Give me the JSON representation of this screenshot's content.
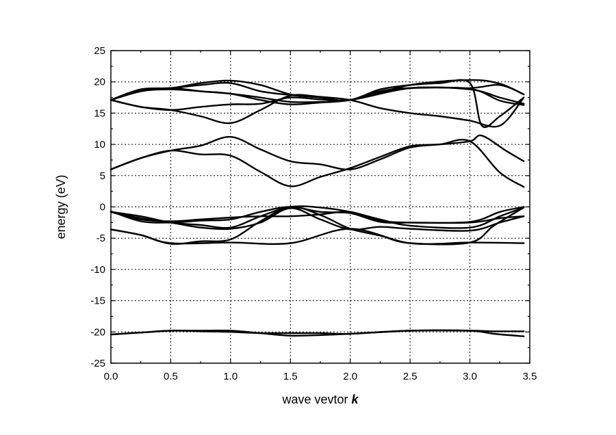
{
  "chart_data": {
    "type": "line",
    "title": "",
    "xlabel": "wave vevtor",
    "xlabel_var": "k",
    "ylabel": "energy (eV)",
    "xlim": [
      0.0,
      3.5
    ],
    "ylim": [
      -25,
      25
    ],
    "x_ticks": [
      "0.0",
      "0.5",
      "1.0",
      "1.5",
      "2.0",
      "2.5",
      "3.0",
      "3.5"
    ],
    "y_ticks": [
      "25",
      "20",
      "15",
      "10",
      "5",
      "0",
      "-5",
      "-10",
      "-15",
      "-20",
      "-25"
    ],
    "grid": true,
    "legend": "none",
    "line_color": "#000000",
    "series": [
      {
        "x": [
          0.0,
          0.25,
          0.5,
          0.75,
          1.0,
          1.25,
          1.5,
          1.75,
          2.0,
          2.5,
          3.0,
          3.2,
          3.45
        ],
        "values": [
          -20.4,
          -20.1,
          -19.8,
          -19.8,
          -19.8,
          -20.2,
          -20.6,
          -20.5,
          -20.3,
          -19.8,
          -19.8,
          -20.3,
          -20.7
        ]
      },
      {
        "x": [
          0.0,
          0.25,
          0.5,
          0.75,
          1.0,
          1.25,
          1.5,
          1.75,
          2.0,
          2.5,
          3.0,
          3.2,
          3.45
        ],
        "values": [
          -20.4,
          -20.1,
          -19.8,
          -19.9,
          -20.0,
          -20.2,
          -20.2,
          -20.2,
          -20.3,
          -19.8,
          -19.8,
          -19.9,
          -19.9
        ]
      },
      {
        "x": [
          0.0,
          0.25,
          0.5,
          1.0,
          1.5,
          2.0,
          2.5,
          3.0,
          3.45
        ],
        "values": [
          -3.6,
          -4.5,
          -5.8,
          -5.7,
          -5.8,
          -3.5,
          -5.8,
          -5.7,
          -5.8
        ]
      },
      {
        "x": [
          0.0,
          0.25,
          0.5,
          0.75,
          1.0,
          1.25,
          1.5,
          1.75,
          2.0,
          2.25,
          2.5,
          3.0,
          3.2,
          3.45
        ],
        "values": [
          -3.6,
          -4.5,
          -5.9,
          -5.5,
          -5.2,
          -2.3,
          0.0,
          -1.3,
          -3.5,
          -4.6,
          -5.8,
          -5.7,
          -3.0,
          -0.1
        ]
      },
      {
        "x": [
          0.0,
          0.25,
          0.5,
          0.75,
          1.0,
          1.25,
          1.5,
          1.75,
          2.0,
          2.25,
          2.5,
          3.0,
          3.25,
          3.45
        ],
        "values": [
          -0.8,
          -1.5,
          -2.5,
          -2.9,
          -3.3,
          -1.5,
          0.0,
          -0.1,
          -0.8,
          -2.0,
          -3.0,
          -3.3,
          -1.5,
          -0.1
        ]
      },
      {
        "x": [
          0.0,
          0.25,
          0.5,
          0.75,
          1.0,
          1.25,
          1.5,
          1.75,
          2.0,
          2.25,
          2.5,
          3.0,
          3.25,
          3.45
        ],
        "values": [
          -0.8,
          -1.8,
          -2.5,
          -3.3,
          -3.5,
          -2.5,
          -0.2,
          -2.0,
          -3.6,
          -3.2,
          -3.5,
          -3.8,
          -2.5,
          -1.5
        ]
      },
      {
        "x": [
          0.0,
          0.25,
          0.5,
          0.75,
          1.0,
          1.25,
          1.5,
          1.75,
          2.0,
          2.25,
          2.5,
          3.0,
          3.25,
          3.45
        ],
        "values": [
          -0.8,
          -2.0,
          -2.3,
          -2.0,
          -1.7,
          -1.5,
          -1.5,
          -1.2,
          -0.8,
          -2.2,
          -2.5,
          -2.5,
          -1.8,
          -1.5
        ]
      },
      {
        "x": [
          0.0,
          0.25,
          0.5,
          0.75,
          1.0,
          1.25,
          1.5,
          1.75,
          2.0,
          2.25,
          2.5,
          3.0,
          3.25,
          3.45
        ],
        "values": [
          -0.7,
          -2.3,
          -2.5,
          -2.2,
          -2.0,
          -0.8,
          0.0,
          -0.8,
          -1.0,
          -2.4,
          -2.5,
          -2.4,
          -0.8,
          0.0
        ]
      },
      {
        "x": [
          0.0,
          0.25,
          0.5,
          0.75,
          1.0,
          1.25,
          1.5,
          1.75,
          2.0,
          2.25,
          2.5,
          2.75,
          3.0,
          3.25,
          3.45
        ],
        "values": [
          6.0,
          7.8,
          9.0,
          9.8,
          11.2,
          9.2,
          7.3,
          6.8,
          6.0,
          7.6,
          9.5,
          10.0,
          10.5,
          5.5,
          3.2
        ]
      },
      {
        "x": [
          0.0,
          0.25,
          0.5,
          0.75,
          1.0,
          1.25,
          1.5,
          1.75,
          2.0,
          2.25,
          2.5,
          2.75,
          3.0,
          3.1,
          3.3,
          3.45
        ],
        "values": [
          6.0,
          7.8,
          9.0,
          8.4,
          8.2,
          5.6,
          3.3,
          4.8,
          6.2,
          8.0,
          9.7,
          10.0,
          10.5,
          11.4,
          9.0,
          7.3
        ]
      },
      {
        "x": [
          0.0,
          0.25,
          0.5,
          0.75,
          1.0,
          1.25,
          1.5,
          1.75,
          2.0,
          2.25,
          2.5,
          2.75,
          3.0,
          3.25,
          3.45
        ],
        "values": [
          17.1,
          16.0,
          15.5,
          14.5,
          13.4,
          15.5,
          17.8,
          17.6,
          17.1,
          15.8,
          15.0,
          14.5,
          13.8,
          13.0,
          17.5
        ]
      },
      {
        "x": [
          0.0,
          0.25,
          0.5,
          0.75,
          1.0,
          1.25,
          1.5,
          1.75,
          2.0,
          2.25,
          2.5,
          2.75,
          3.0,
          3.1,
          3.25,
          3.45
        ],
        "values": [
          17.1,
          16.0,
          15.5,
          16.0,
          16.4,
          16.5,
          17.5,
          17.2,
          17.1,
          18.8,
          19.5,
          19.8,
          19.8,
          13.0,
          14.5,
          17.5
        ]
      },
      {
        "x": [
          0.0,
          0.25,
          0.5,
          0.75,
          1.0,
          1.25,
          1.5,
          1.75,
          2.0,
          2.5,
          3.0,
          3.25,
          3.45
        ],
        "values": [
          17.1,
          18.5,
          18.8,
          18.5,
          18.1,
          17.1,
          16.4,
          16.7,
          17.1,
          19.0,
          18.8,
          17.5,
          16.5
        ]
      },
      {
        "x": [
          0.0,
          0.25,
          0.5,
          0.75,
          1.0,
          1.25,
          1.5,
          1.75,
          2.0,
          2.5,
          3.0,
          3.25,
          3.45
        ],
        "values": [
          17.1,
          18.8,
          19.0,
          19.5,
          19.8,
          18.5,
          17.9,
          17.5,
          17.1,
          19.0,
          19.0,
          19.5,
          18.0
        ]
      },
      {
        "x": [
          0.0,
          0.25,
          0.5,
          0.75,
          1.0,
          1.25,
          1.5,
          1.75,
          2.0,
          2.5,
          3.0,
          3.25,
          3.45
        ],
        "values": [
          17.1,
          18.8,
          19.0,
          19.8,
          20.2,
          19.5,
          18.0,
          17.5,
          17.1,
          19.5,
          20.3,
          19.7,
          18.0
        ]
      },
      {
        "x": [
          0.0,
          0.25,
          0.5,
          0.75,
          1.0,
          1.25,
          1.5,
          1.75,
          2.0,
          2.25,
          2.5,
          3.0,
          3.25,
          3.45
        ],
        "values": [
          17.1,
          18.5,
          19.0,
          18.5,
          18.1,
          17.5,
          16.8,
          16.8,
          17.1,
          18.5,
          19.0,
          18.9,
          17.0,
          16.3
        ]
      }
    ]
  }
}
